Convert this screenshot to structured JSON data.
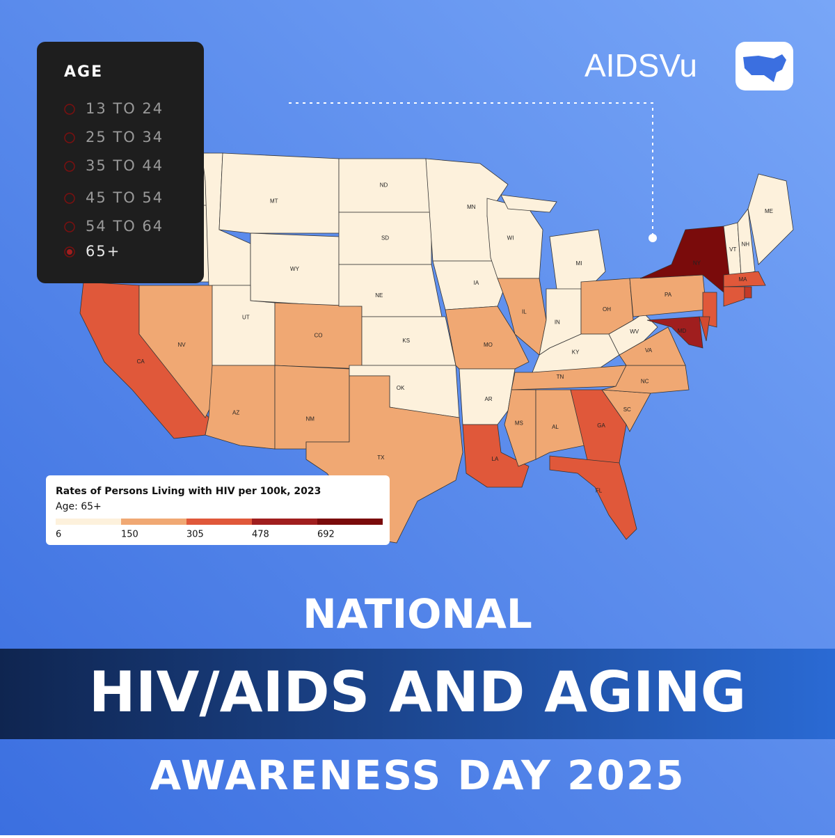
{
  "logo": {
    "text": "AIDSVu"
  },
  "filter_panel": {
    "title": "AGE",
    "options": [
      {
        "label": "13 TO 24",
        "selected": false
      },
      {
        "label": "25 TO 34",
        "selected": false
      },
      {
        "label": "35 TO 44",
        "selected": false
      },
      {
        "label": "45 TO 54",
        "selected": false
      },
      {
        "label": "54 TO 64",
        "selected": false
      },
      {
        "label": "65+",
        "selected": true
      }
    ]
  },
  "map": {
    "states": [
      {
        "label": null,
        "color": "#fdf1dc"
      },
      {
        "label": null,
        "color": "#fdf1dc"
      },
      {
        "label": "CA",
        "color": "#e0583a"
      },
      {
        "label": "NV",
        "color": "#f0a873"
      },
      {
        "label": null,
        "color": "#fdf1dc"
      },
      {
        "label": "MT",
        "color": "#fdf1dc"
      },
      {
        "label": "WY",
        "color": "#fdf1dc"
      },
      {
        "label": "UT",
        "color": "#fdf1dc"
      },
      {
        "label": "CO",
        "color": "#f0a873"
      },
      {
        "label": "AZ",
        "color": "#f0a873"
      },
      {
        "label": "NM",
        "color": "#f0a873"
      },
      {
        "label": "ND",
        "color": "#fdf1dc"
      },
      {
        "label": "SD",
        "color": "#fdf1dc"
      },
      {
        "label": "NE",
        "color": "#fdf1dc"
      },
      {
        "label": "KS",
        "color": "#fdf1dc"
      },
      {
        "label": "OK",
        "color": "#fdf1dc"
      },
      {
        "label": "TX",
        "color": "#f0a873"
      },
      {
        "label": "MN",
        "color": "#fdf1dc"
      },
      {
        "label": "IA",
        "color": "#fdf1dc"
      },
      {
        "label": "MO",
        "color": "#f0a873"
      },
      {
        "label": "AR",
        "color": "#fdf1dc"
      },
      {
        "label": "LA",
        "color": "#e0583a"
      },
      {
        "label": "WI",
        "color": "#fdf1dc"
      },
      {
        "label": "IL",
        "color": "#f0a873"
      },
      {
        "label": "MI",
        "color": "#fdf1dc"
      },
      {
        "label": null,
        "color": "#fdf1dc"
      },
      {
        "label": "IN",
        "color": "#fdf1dc"
      },
      {
        "label": "OH",
        "color": "#f0a873"
      },
      {
        "label": "KY",
        "color": "#fdf1dc"
      },
      {
        "label": "TN",
        "color": "#f0a873"
      },
      {
        "label": "MS",
        "color": "#f0a873"
      },
      {
        "label": "AL",
        "color": "#f0a873"
      },
      {
        "label": "GA",
        "color": "#e0583a"
      },
      {
        "label": "FL",
        "color": "#e0583a"
      },
      {
        "label": "SC",
        "color": "#f0a873"
      },
      {
        "label": "NC",
        "color": "#f0a873"
      },
      {
        "label": "VA",
        "color": "#f0a873"
      },
      {
        "label": "WV",
        "color": "#fdf1dc"
      },
      {
        "label": "PA",
        "color": "#f0a873"
      },
      {
        "label": "NY",
        "color": "#7a0b0b"
      },
      {
        "label": null,
        "color": "#e0583a"
      },
      {
        "label": "MD",
        "color": "#a01e1e"
      },
      {
        "label": null,
        "color": "#d24a30"
      },
      {
        "label": "VT",
        "color": "#fdf1dc"
      },
      {
        "label": "NH",
        "color": "#fdf1dc"
      },
      {
        "label": "ME",
        "color": "#fdf1dc"
      },
      {
        "label": "MA",
        "color": "#e0583a"
      },
      {
        "label": null,
        "color": "#e0583a"
      },
      {
        "label": null,
        "color": "#c33a28"
      }
    ]
  },
  "legend": {
    "title": "Rates of Persons Living with HIV per 100k, 2023",
    "subtitle": "Age: 65+",
    "breaks": [
      6,
      150,
      305,
      478,
      692
    ],
    "colors": [
      "#fdf1dc",
      "#f0a873",
      "#e0583a",
      "#a01e1e",
      "#7a0b0b"
    ]
  },
  "headline": {
    "line1": "NATIONAL",
    "line2": "HIV/AIDS AND AGING",
    "line3": "AWARENESS DAY 2025"
  }
}
